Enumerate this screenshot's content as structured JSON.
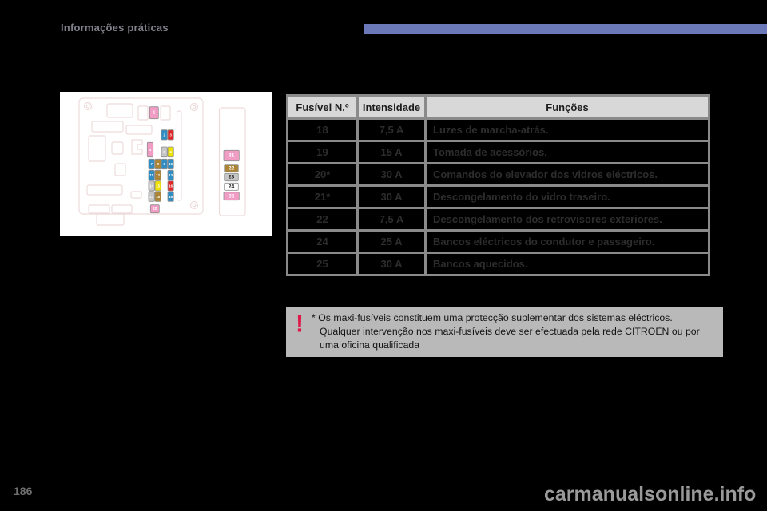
{
  "header": {
    "section_label": "Informações práticas",
    "accent_color": "#6b79b8"
  },
  "diagram": {
    "outline_color": "#eddbdb",
    "fuse_colors": {
      "pink": "#f19cc5",
      "blue": "#2f8dc4",
      "red": "#e02526",
      "yellow": "#efe203",
      "brown": "#ad8434",
      "gray": "#c6c6c6",
      "white": "#ffffff"
    },
    "fuses": [
      {
        "id": "1",
        "color": "pink",
        "tc": "#ffffff"
      },
      {
        "id": "2",
        "color": "blue",
        "tc": "#ffffff"
      },
      {
        "id": "3",
        "color": "red",
        "tc": "#ffffff"
      },
      {
        "id": "4",
        "color": "pink",
        "tc": "#ffffff"
      },
      {
        "id": "5",
        "color": "gray",
        "tc": "#ffffff"
      },
      {
        "id": "6",
        "color": "yellow",
        "tc": "#ffffff"
      },
      {
        "id": "7",
        "color": "blue",
        "tc": "#ffffff"
      },
      {
        "id": "8",
        "color": "brown",
        "tc": "#ffffff"
      },
      {
        "id": "9",
        "color": "blue",
        "tc": "#ffffff"
      },
      {
        "id": "10",
        "color": "blue",
        "tc": "#ffffff"
      },
      {
        "id": "11",
        "color": "blue",
        "tc": "#ffffff"
      },
      {
        "id": "12",
        "color": "brown",
        "tc": "#ffffff"
      },
      {
        "id": "13",
        "color": "blue",
        "tc": "#ffffff"
      },
      {
        "id": "14",
        "color": "gray",
        "tc": "#ffffff"
      },
      {
        "id": "15",
        "color": "yellow",
        "tc": "#ffffff"
      },
      {
        "id": "16",
        "color": "red",
        "tc": "#ffffff"
      },
      {
        "id": "17",
        "color": "gray",
        "tc": "#ffffff"
      },
      {
        "id": "18",
        "color": "brown",
        "tc": "#ffffff"
      },
      {
        "id": "19",
        "color": "blue",
        "tc": "#ffffff"
      },
      {
        "id": "20",
        "color": "pink",
        "tc": "#ffffff"
      },
      {
        "id": "21",
        "color": "pink",
        "tc": "#ffffff"
      },
      {
        "id": "22",
        "color": "brown",
        "tc": "#ffffff"
      },
      {
        "id": "23",
        "color": "gray",
        "tc": "#1a1a1a"
      },
      {
        "id": "24",
        "color": "white",
        "tc": "#1a1a1a"
      },
      {
        "id": "25",
        "color": "pink",
        "tc": "#ffffff"
      }
    ]
  },
  "table": {
    "headers": [
      "Fusível N.º",
      "Intensidade",
      "Funções"
    ],
    "rows": [
      {
        "fuse": "18",
        "amp": "7,5 A",
        "func": "Luzes de marcha-atrás."
      },
      {
        "fuse": "19",
        "amp": "15 A",
        "func": "Tomada de acessórios."
      },
      {
        "fuse": "20*",
        "amp": "30 A",
        "func": "Comandos do elevador dos vidros eléctricos."
      },
      {
        "fuse": "21*",
        "amp": "30 A",
        "func": "Descongelamento do vidro traseiro."
      },
      {
        "fuse": "22",
        "amp": "7,5 A",
        "func": "Descongelamento dos retrovisores exteriores."
      },
      {
        "fuse": "24",
        "amp": "25 A",
        "func": "Bancos eléctricos do condutor e passageiro."
      },
      {
        "fuse": "25",
        "amp": "30 A",
        "func": "Bancos aquecidos."
      }
    ]
  },
  "note": {
    "icon_color": "#e0174a",
    "lines": [
      "* Os maxi-fusíveis constituem uma protecção suplementar dos sistemas eléctricos.",
      "Qualquer intervenção nos maxi-fusíveis deve ser efectuada pela rede CITROËN ou por",
      "uma oficina qualificada"
    ]
  },
  "footer": {
    "page_number": "186",
    "watermark": "carmanualsonline.info"
  }
}
